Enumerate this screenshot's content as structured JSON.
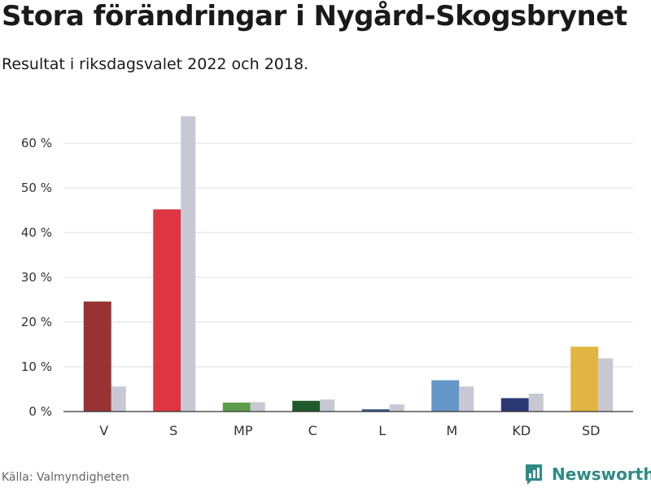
{
  "title": "Stora förändringar i Nygård-Skogsbrynet",
  "subtitle": "Resultat i riksdagsvalet 2022 och 2018.",
  "source": "Källa: Valmyndigheten",
  "brand": {
    "name": "Newsworthy",
    "icon": "newsworthy-logo-icon",
    "color": "#2f8a86"
  },
  "chart_data": {
    "type": "bar",
    "categories": [
      "V",
      "S",
      "MP",
      "C",
      "L",
      "M",
      "KD",
      "SD"
    ],
    "colors_2022": [
      "#993333",
      "#dd3541",
      "#5b9d4a",
      "#1f5a2c",
      "#36578a",
      "#6598c9",
      "#2c3874",
      "#e0b541"
    ],
    "color_2018": "#c8c8d4",
    "series": [
      {
        "values": [
          24.6,
          45.2,
          2.0,
          2.4,
          0.5,
          7.0,
          3.0,
          14.5
        ]
      },
      {
        "values": [
          5.6,
          66.0,
          2.1,
          2.7,
          1.6,
          5.6,
          4.0,
          11.9
        ]
      }
    ],
    "y_ticks": [
      0,
      10,
      20,
      30,
      40,
      50,
      60
    ],
    "y_tick_labels": [
      "0 %",
      "10 %",
      "20 %",
      "30 %",
      "40 %",
      "50 %",
      "60 %"
    ],
    "ylim": [
      0,
      66
    ],
    "grid": true
  }
}
